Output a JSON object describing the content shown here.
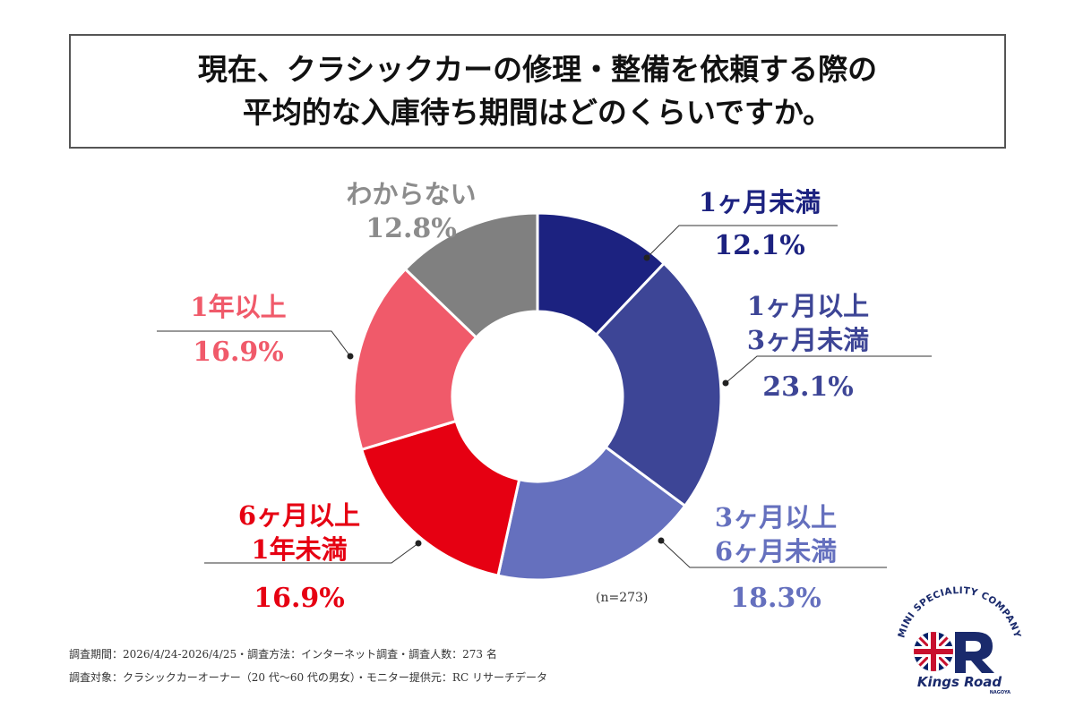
{
  "title": {
    "line1": "現在、クラシックカーの修理・整備を依頼する際の",
    "line2": "平均的な入庫待ち期間はどのくらいですか。"
  },
  "chart_data": {
    "type": "pie",
    "donut": true,
    "categories": [
      "1ヶ月未満",
      "1ヶ月以上3ヶ月未満",
      "3ヶ月以上6ヶ月未満",
      "6ヶ月以上1年未満",
      "1年以上",
      "わからない"
    ],
    "values": [
      12.1,
      23.1,
      18.3,
      16.9,
      16.9,
      12.8
    ],
    "value_labels": [
      "12.1%",
      "23.1%",
      "18.3%",
      "16.9%",
      "16.9%",
      "12.8%"
    ],
    "label_lines": [
      [
        "1ヶ月未満"
      ],
      [
        "1ヶ月以上",
        "3ヶ月未満"
      ],
      [
        "3ヶ月以上",
        "6ヶ月未満"
      ],
      [
        "6ヶ月以上",
        "1年未満"
      ],
      [
        "1年以上"
      ],
      [
        "わからない"
      ]
    ],
    "colors": [
      "#1c2280",
      "#3d4596",
      "#6570be",
      "#e60012",
      "#f05a6a",
      "#808080"
    ],
    "label_colors": [
      "#1c2280",
      "#3d4596",
      "#6570be",
      "#e60012",
      "#f05a6a",
      "#8c8c8c"
    ],
    "n_note": "(n=273)"
  },
  "footnotes": {
    "line1": "調査期間：2026/4/24-2026/4/25・調査方法：インターネット調査・調査人数：273 名",
    "line2": "調査対象：クラシックカーオーナー（20 代〜60 代の男女）・モニター提供元：RC リサーチデータ"
  },
  "logo": {
    "arc_text": "MINI SPECIALITY COMPANY",
    "brand": "Kings Road",
    "sub": "NAGOYA",
    "colors": {
      "red": "#c8102e",
      "blue": "#012169",
      "navy": "#1a2a6c"
    }
  }
}
